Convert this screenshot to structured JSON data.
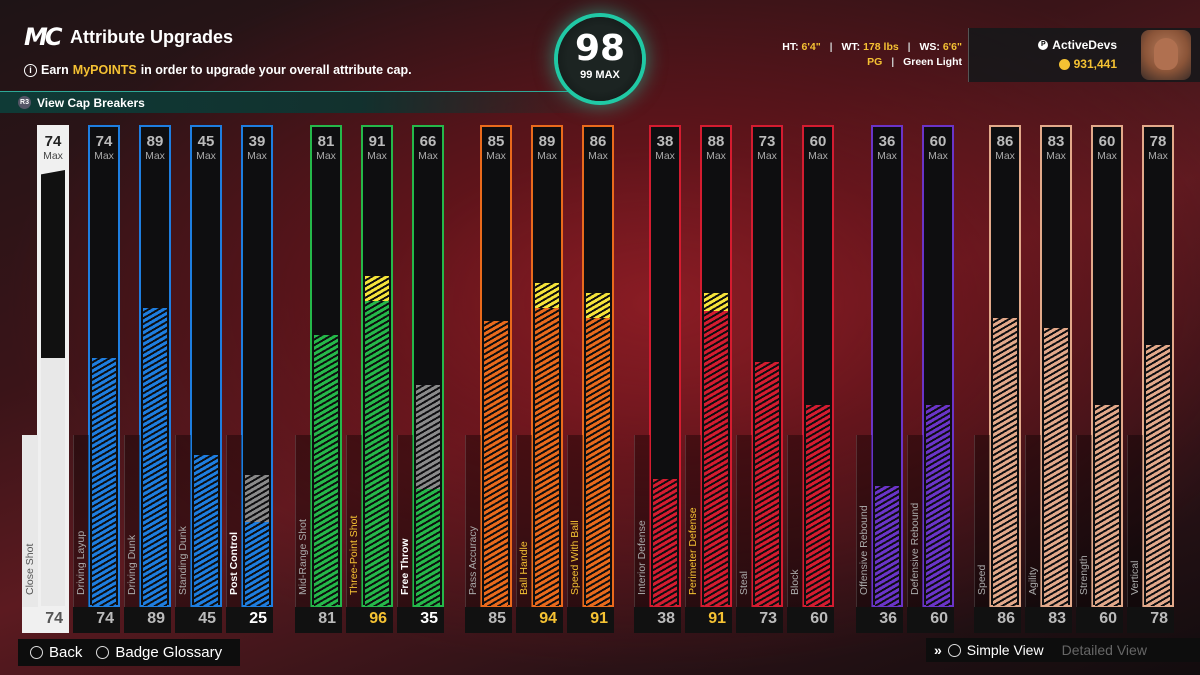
{
  "header": {
    "logo": "MC",
    "title": "Attribute Upgrades",
    "info_prefix": "Earn",
    "info_highlight": "MyPOINTS",
    "info_suffix": "in order to upgrade your overall attribute cap.",
    "cap_breakers_label": "View Cap Breakers"
  },
  "overall": {
    "value": "98",
    "max_label": "99 MAX",
    "ring_color": "#20c9a5"
  },
  "player": {
    "ht_label": "HT:",
    "ht": "6'4\"",
    "wt_label": "WT:",
    "wt": "178 lbs",
    "ws_label": "WS:",
    "ws": "6'6\"",
    "position": "PG",
    "jumpshot": "Green Light",
    "username": "ActiveDevs",
    "vc": "931,441"
  },
  "attributes": [
    {
      "name": "Close Shot",
      "max": 74,
      "current": 74,
      "color": "#e8e8e8",
      "group": "finishing",
      "boost": false,
      "selected": true
    },
    {
      "name": "Driving Layup",
      "max": 74,
      "current": 74,
      "color": "#1e7ee0",
      "group": "finishing",
      "boost": false
    },
    {
      "name": "Driving Dunk",
      "max": 89,
      "current": 89,
      "color": "#1e7ee0",
      "group": "finishing",
      "boost": false
    },
    {
      "name": "Standing Dunk",
      "max": 45,
      "current": 45,
      "color": "#1e7ee0",
      "group": "finishing",
      "boost": false
    },
    {
      "name": "Post Control",
      "max": 39,
      "current": 25,
      "color": "#1e7ee0",
      "group": "finishing",
      "boost": false
    },
    {
      "name": "Mid-Range Shot",
      "max": 81,
      "current": 81,
      "color": "#25b84a",
      "group": "shooting",
      "boost": false
    },
    {
      "name": "Three-Point Shot",
      "max": 91,
      "current": 96,
      "color": "#25b84a",
      "group": "shooting",
      "boost": true
    },
    {
      "name": "Free Throw",
      "max": 66,
      "current": 35,
      "color": "#25b84a",
      "group": "shooting",
      "boost": false
    },
    {
      "name": "Pass Accuracy",
      "max": 85,
      "current": 85,
      "color": "#ea6a1c",
      "group": "playmaking",
      "boost": false
    },
    {
      "name": "Ball Handle",
      "max": 89,
      "current": 94,
      "color": "#ea6a1c",
      "group": "playmaking",
      "boost": true
    },
    {
      "name": "Speed With Ball",
      "max": 86,
      "current": 91,
      "color": "#ea6a1c",
      "group": "playmaking",
      "boost": true
    },
    {
      "name": "Interior Defense",
      "max": 38,
      "current": 38,
      "color": "#d41c30",
      "group": "defense",
      "boost": false
    },
    {
      "name": "Perimeter Defense",
      "max": 88,
      "current": 91,
      "color": "#d41c30",
      "group": "defense",
      "boost": true
    },
    {
      "name": "Steal",
      "max": 73,
      "current": 73,
      "color": "#d41c30",
      "group": "defense",
      "boost": false
    },
    {
      "name": "Block",
      "max": 60,
      "current": 60,
      "color": "#d41c30",
      "group": "defense",
      "boost": false
    },
    {
      "name": "Offensive Rebound",
      "max": 36,
      "current": 36,
      "color": "#6a34c8",
      "group": "rebounding",
      "boost": false
    },
    {
      "name": "Defensive Rebound",
      "max": 60,
      "current": 60,
      "color": "#6a34c8",
      "group": "rebounding",
      "boost": false
    },
    {
      "name": "Speed",
      "max": 86,
      "current": 86,
      "color": "#e3a98a",
      "group": "athleticism",
      "boost": false
    },
    {
      "name": "Agility",
      "max": 83,
      "current": 83,
      "color": "#e3a98a",
      "group": "athleticism",
      "boost": false
    },
    {
      "name": "Strength",
      "max": 60,
      "current": 60,
      "color": "#e3a98a",
      "group": "athleticism",
      "boost": false
    },
    {
      "name": "Vertical",
      "max": 78,
      "current": 78,
      "color": "#e3a98a",
      "group": "athleticism",
      "boost": false
    }
  ],
  "max_label": "Max",
  "footer": {
    "back": "Back",
    "glossary": "Badge Glossary",
    "simple_view": "Simple View",
    "detailed_view": "Detailed View"
  }
}
